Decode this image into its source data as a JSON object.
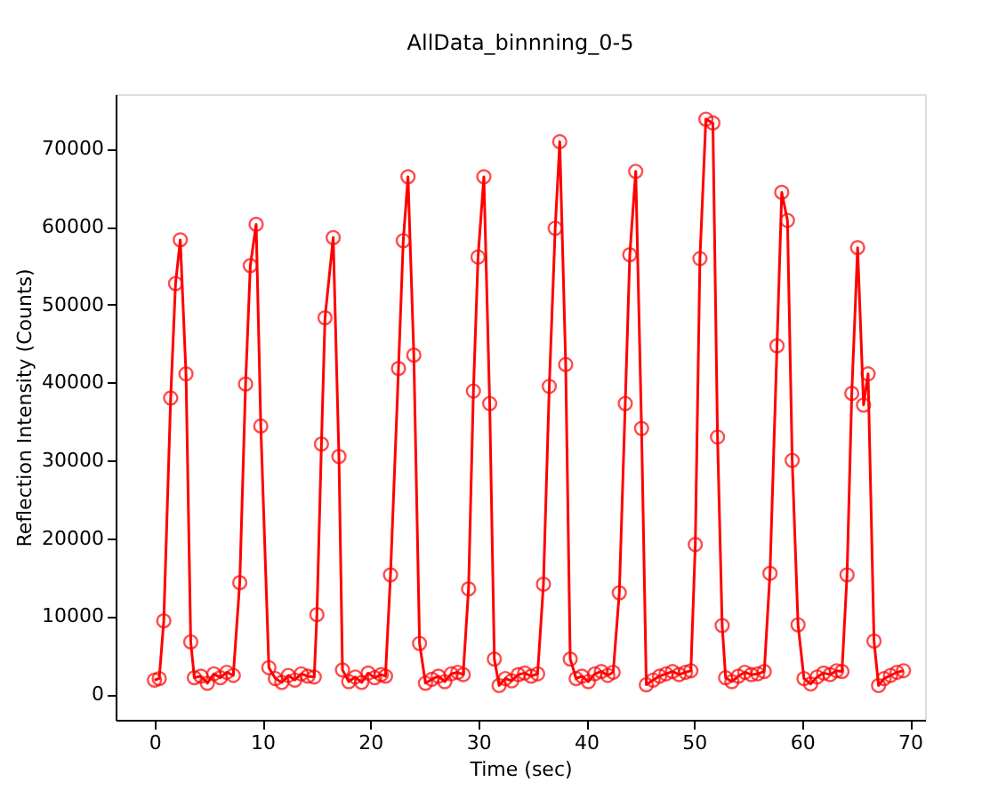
{
  "chart_data": {
    "type": "line",
    "title": "AllData_binnning_0-5",
    "xlabel": "Time (sec)",
    "ylabel": "Reflection Intensity (Counts)",
    "xlim": [
      -3.6,
      71.4
    ],
    "ylim": [
      -3300,
      77000
    ],
    "xticks": [
      0,
      10,
      20,
      30,
      40,
      50,
      60,
      70
    ],
    "yticks": [
      0,
      10000,
      20000,
      30000,
      40000,
      50000,
      60000,
      70000
    ],
    "grid": false,
    "legend": false,
    "marker": "circle",
    "line_style": "solid",
    "series": [
      {
        "color": "#ff0000",
        "x": [
          0.0,
          0.44,
          0.86,
          1.5,
          1.95,
          2.39,
          2.92,
          3.36,
          3.69,
          4.3,
          4.9,
          5.5,
          6.1,
          6.7,
          7.3,
          7.9,
          8.44,
          8.88,
          9.42,
          9.85,
          10.6,
          11.2,
          11.8,
          12.4,
          13.0,
          13.6,
          14.2,
          14.8,
          15.05,
          15.47,
          15.8,
          16.56,
          17.09,
          17.42,
          18.0,
          18.6,
          19.2,
          19.8,
          20.4,
          21.0,
          21.4,
          21.87,
          22.61,
          23.05,
          23.49,
          24.03,
          24.56,
          25.11,
          25.7,
          26.3,
          26.9,
          27.5,
          28.1,
          28.6,
          29.1,
          29.55,
          29.98,
          30.52,
          31.06,
          31.49,
          31.93,
          32.5,
          33.1,
          33.7,
          34.3,
          34.9,
          35.5,
          36.04,
          36.58,
          37.13,
          37.55,
          38.1,
          38.52,
          39.07,
          39.6,
          40.2,
          40.8,
          41.4,
          42.0,
          42.5,
          43.07,
          43.62,
          44.04,
          44.59,
          45.13,
          45.57,
          46.2,
          46.8,
          47.4,
          48.0,
          48.6,
          49.2,
          49.7,
          50.11,
          50.54,
          51.09,
          51.74,
          52.17,
          52.6,
          52.92,
          53.5,
          54.1,
          54.7,
          55.3,
          55.9,
          56.5,
          57.03,
          57.68,
          58.12,
          58.65,
          59.09,
          59.63,
          60.18,
          60.8,
          61.4,
          62.0,
          62.6,
          63.2,
          63.7,
          64.17,
          64.61,
          65.15,
          65.7,
          66.12,
          66.67,
          67.09,
          67.6,
          68.2,
          68.8,
          69.4
        ],
        "values": [
          1800,
          2000,
          9400,
          38000,
          52700,
          58300,
          41100,
          6700,
          2100,
          2300,
          1400,
          2600,
          2100,
          2800,
          2400,
          14300,
          39800,
          55000,
          60300,
          34400,
          3400,
          2000,
          1500,
          2400,
          1800,
          2600,
          2300,
          2200,
          10200,
          32100,
          48300,
          58600,
          30500,
          3100,
          1600,
          2200,
          1500,
          2700,
          2100,
          2500,
          2300,
          15300,
          41800,
          58200,
          66400,
          43500,
          6500,
          1400,
          1900,
          2300,
          1600,
          2600,
          2800,
          2500,
          13500,
          38900,
          56100,
          66400,
          37300,
          4500,
          1100,
          2000,
          1700,
          2500,
          2700,
          2300,
          2600,
          14100,
          39500,
          59800,
          70900,
          42300,
          4500,
          2000,
          2300,
          1600,
          2600,
          2900,
          2400,
          2800,
          13000,
          37300,
          56400,
          67100,
          34100,
          1200,
          1800,
          2300,
          2600,
          2900,
          2500,
          2800,
          3000,
          19200,
          55900,
          73800,
          73300,
          33000,
          8800,
          2100,
          1600,
          2300,
          2800,
          2500,
          2600,
          2900,
          15500,
          44700,
          64400,
          60800,
          30000,
          8900,
          2000,
          1300,
          2200,
          2700,
          2500,
          3000,
          2900,
          15300,
          38600,
          57300,
          37100,
          41100,
          6800,
          1100,
          2000,
          2400,
          2800,
          3000
        ]
      }
    ]
  }
}
